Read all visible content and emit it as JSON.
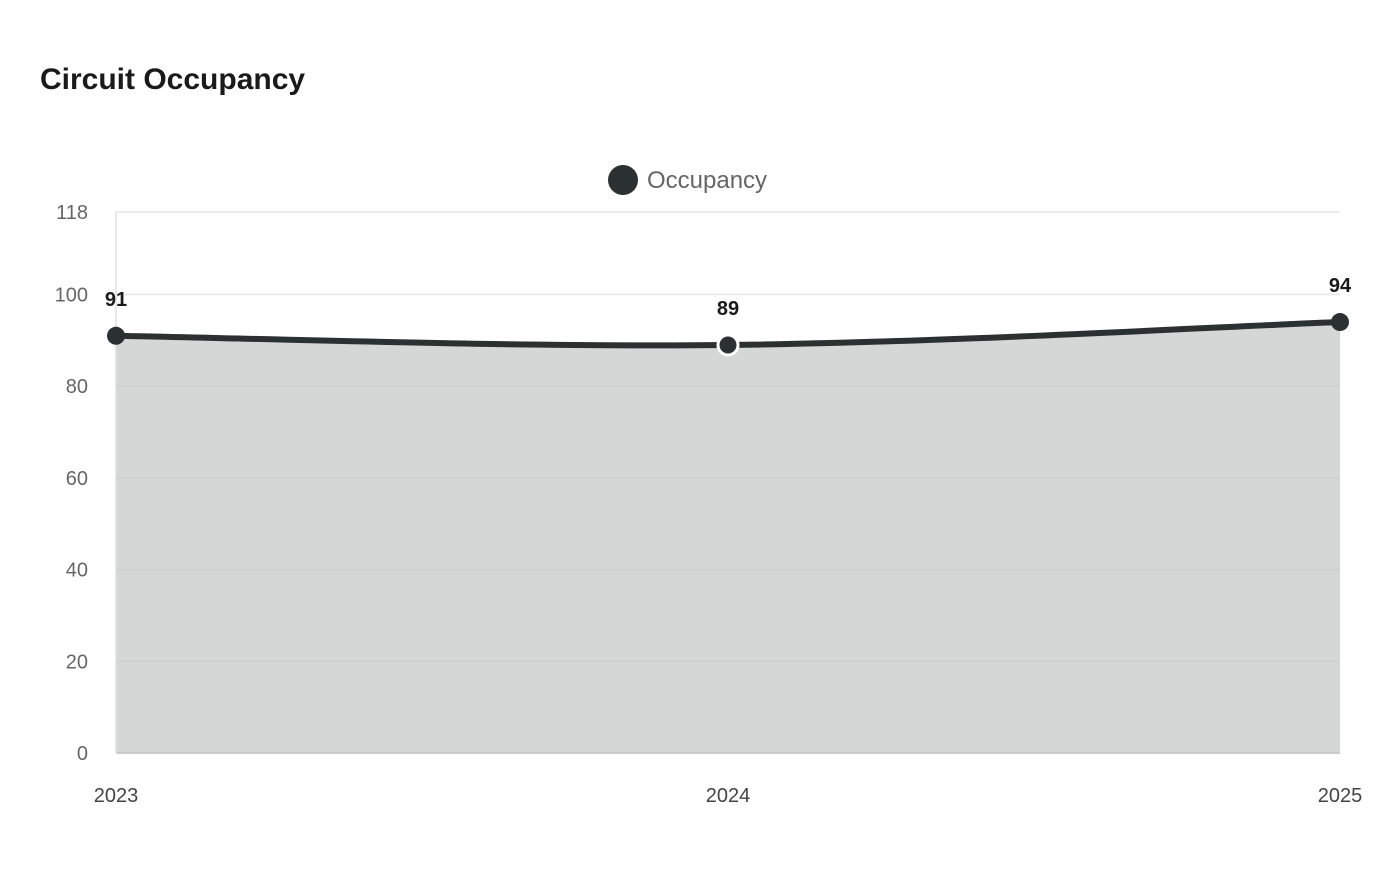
{
  "colors": {
    "series": "#2b3133",
    "area_fill": "#d5d6d6",
    "grid": "#dcdcdc",
    "background": "#ffffff"
  },
  "chart_data": {
    "type": "area",
    "title": "Circuit Occupancy",
    "categories": [
      "2023",
      "2024",
      "2025"
    ],
    "series": [
      {
        "name": "Occupancy",
        "values": [
          91,
          89,
          94
        ]
      }
    ],
    "yticks": [
      0,
      20,
      40,
      60,
      80,
      100,
      118
    ],
    "ylim": [
      0,
      118
    ],
    "xlabel": "",
    "ylabel": "",
    "grid": true,
    "legend": "top-center",
    "data_labels": true
  }
}
